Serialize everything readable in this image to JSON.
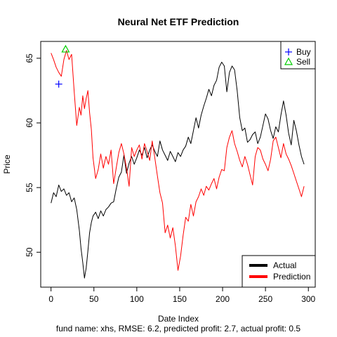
{
  "chart_data": {
    "type": "line",
    "title": "Neural Net ETF Prediction",
    "xlabel": "Date Index",
    "ylabel": "Price",
    "caption": "fund name: xhs, RMSE: 6.2, predicted profit: 2.7, actual profit: 0.5",
    "xlim": [
      -12,
      308
    ],
    "ylim": [
      47.3,
      66.3
    ],
    "x_ticks": [
      0,
      50,
      100,
      150,
      200,
      250,
      300
    ],
    "x_tick_labels": [
      "0",
      "50",
      "100",
      "150",
      "200",
      "250",
      "300"
    ],
    "y_ticks": [
      50,
      55,
      60,
      65
    ],
    "y_tick_labels": [
      "50",
      "55",
      "60",
      "65"
    ],
    "grid": false,
    "series": [
      {
        "name": "Actual",
        "color": "#000000",
        "x": [
          0,
          3,
          6,
          9,
          12,
          15,
          18,
          21,
          24,
          27,
          30,
          33,
          35,
          37,
          39,
          41,
          43,
          45,
          47,
          49,
          52,
          55,
          58,
          61,
          64,
          67,
          70,
          73,
          76,
          79,
          82,
          85,
          88,
          91,
          94,
          97,
          100,
          103,
          106,
          109,
          112,
          115,
          118,
          121,
          124,
          127,
          130,
          133,
          136,
          139,
          142,
          145,
          148,
          151,
          154,
          157,
          160,
          163,
          166,
          169,
          172,
          175,
          178,
          181,
          184,
          187,
          190,
          193,
          196,
          199,
          202,
          205,
          208,
          211,
          214,
          217,
          220,
          223,
          226,
          229,
          232,
          235,
          238,
          241,
          244,
          247,
          250,
          253,
          256,
          259,
          262,
          265,
          268,
          271,
          274,
          277,
          280,
          283,
          286,
          289,
          292,
          295
        ],
        "y": [
          53.8,
          54.6,
          54.3,
          55.2,
          54.7,
          54.9,
          54.4,
          54.6,
          53.9,
          54.2,
          53.3,
          51.7,
          50.3,
          49.2,
          48.0,
          48.8,
          50.1,
          51.5,
          52.3,
          52.8,
          53.1,
          52.6,
          53.2,
          52.8,
          53.3,
          53.5,
          53.8,
          53.9,
          54.9,
          55.8,
          56.2,
          57.5,
          56.1,
          56.9,
          57.4,
          56.8,
          57.3,
          57.9,
          57.5,
          58.1,
          57.3,
          57.9,
          58.3,
          57.8,
          57.4,
          58.6,
          57.9,
          57.5,
          57.1,
          57.8,
          57.4,
          57.0,
          57.7,
          57.4,
          57.9,
          58.2,
          58.9,
          58.4,
          59.4,
          60.4,
          59.6,
          60.6,
          61.3,
          61.9,
          62.6,
          62.1,
          62.9,
          63.3,
          64.3,
          64.7,
          64.4,
          62.4,
          63.9,
          64.4,
          64.1,
          62.5,
          60.4,
          59.4,
          59.6,
          58.5,
          58.7,
          59.1,
          59.3,
          58.4,
          58.9,
          59.8,
          60.7,
          60.3,
          59.4,
          58.8,
          59.7,
          59.3,
          60.6,
          61.7,
          60.6,
          59.2,
          58.3,
          60.2,
          59.4,
          58.3,
          57.4,
          56.8
        ]
      },
      {
        "name": "Prediction",
        "color": "#ff0000",
        "x": [
          0,
          3,
          6,
          9,
          12,
          15,
          18,
          21,
          24,
          27,
          30,
          33,
          35,
          37,
          39,
          41,
          43,
          45,
          47,
          49,
          52,
          55,
          58,
          61,
          64,
          67,
          70,
          73,
          76,
          79,
          82,
          85,
          88,
          91,
          94,
          97,
          100,
          103,
          106,
          109,
          112,
          115,
          118,
          121,
          124,
          127,
          130,
          133,
          136,
          139,
          142,
          145,
          148,
          151,
          154,
          157,
          160,
          163,
          166,
          169,
          172,
          175,
          178,
          181,
          184,
          187,
          190,
          193,
          196,
          199,
          202,
          205,
          208,
          211,
          214,
          217,
          220,
          223,
          226,
          229,
          232,
          235,
          238,
          241,
          244,
          247,
          250,
          253,
          256,
          259,
          262,
          265,
          268,
          271,
          274,
          277,
          280,
          283,
          286,
          289,
          292,
          295
        ],
        "y": [
          65.4,
          64.9,
          64.3,
          63.9,
          63.6,
          64.9,
          65.6,
          64.9,
          65.3,
          62.4,
          59.8,
          61.2,
          60.6,
          62.1,
          61.1,
          61.9,
          62.5,
          60.8,
          59.5,
          57.3,
          55.7,
          56.4,
          57.6,
          56.5,
          57.4,
          56.8,
          57.9,
          55.3,
          56.5,
          57.7,
          58.4,
          57.6,
          56.5,
          55.1,
          58.1,
          57.4,
          57.9,
          58.3,
          57.2,
          58.4,
          57.8,
          57.1,
          58.6,
          57.3,
          55.9,
          54.6,
          53.8,
          51.5,
          52.1,
          51.1,
          51.9,
          50.5,
          48.6,
          49.7,
          51.3,
          52.7,
          52.4,
          53.7,
          52.8,
          53.9,
          54.3,
          54.9,
          54.4,
          55.1,
          54.8,
          55.3,
          55.7,
          54.9,
          55.8,
          56.4,
          56.3,
          58.1,
          58.9,
          59.4,
          58.4,
          57.8,
          57.1,
          56.6,
          57.4,
          56.8,
          56.0,
          55.2,
          57.4,
          58.1,
          57.9,
          57.2,
          56.8,
          56.3,
          57.2,
          58.6,
          58.9,
          58.1,
          57.3,
          58.4,
          57.6,
          57.2,
          56.7,
          56.1,
          55.5,
          54.9,
          54.3,
          55.1
        ]
      }
    ],
    "markers": [
      {
        "name": "Buy",
        "shape": "plus",
        "color": "#0000ff",
        "x": 9,
        "y": 63.0
      },
      {
        "name": "Sell",
        "shape": "triangle",
        "color": "#00cc00",
        "x": 17,
        "y": 65.7
      }
    ],
    "legend_markers": [
      {
        "label": "Buy",
        "shape": "plus",
        "color": "#0000ff"
      },
      {
        "label": "Sell",
        "shape": "triangle",
        "color": "#00cc00"
      }
    ],
    "legend_lines": [
      {
        "label": "Actual",
        "color": "#000000"
      },
      {
        "label": "Prediction",
        "color": "#ff0000"
      }
    ],
    "legend_markers_position": "top-right",
    "legend_lines_position": "bottom-right"
  }
}
